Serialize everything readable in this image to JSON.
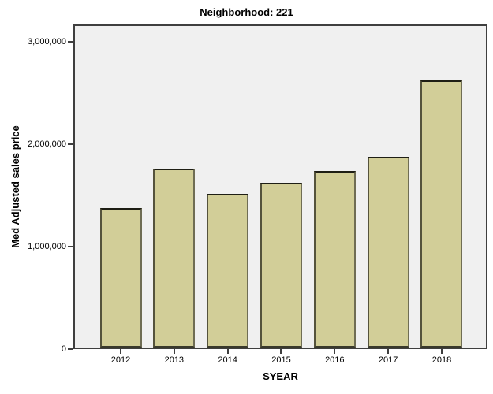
{
  "chart_data": {
    "type": "bar",
    "title": "Neighborhood: 221",
    "xlabel": "SYEAR",
    "ylabel": "Med Adjusted sales price",
    "categories": [
      "2012",
      "2013",
      "2014",
      "2015",
      "2016",
      "2017",
      "2018"
    ],
    "values": [
      1360000,
      1750000,
      1500000,
      1610000,
      1720000,
      1860000,
      2610000
    ],
    "ylim": [
      0,
      3000000
    ],
    "yticks": [
      {
        "label": "0",
        "value": 0
      },
      {
        "label": "1,000,000",
        "value": 1000000
      },
      {
        "label": "2,000,000",
        "value": 2000000
      },
      {
        "label": "3,000,000",
        "value": 3000000
      }
    ],
    "grid": false,
    "legend_position": "none",
    "colors": {
      "bar_fill": "#D2CE98",
      "bar_border": "#2B2B20",
      "plot_background": "#F0F0F0",
      "frame": "#3F3F3F",
      "background": "#FFFFFF",
      "text": "#000000"
    }
  }
}
